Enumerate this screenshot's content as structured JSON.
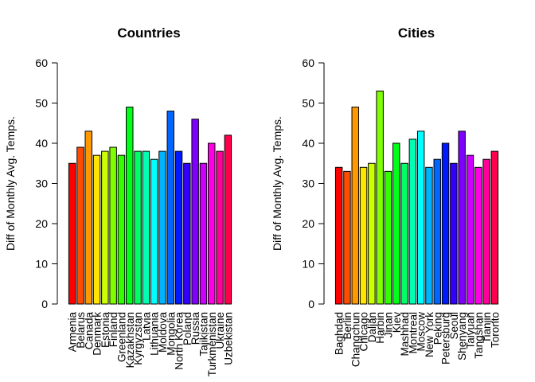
{
  "chart_data": [
    {
      "type": "bar",
      "title": "Countries",
      "ylabel": "Diff of Monthly Avg. Temps.",
      "xlabel": "",
      "ylim": [
        0,
        60
      ],
      "yticks": [
        0,
        10,
        20,
        30,
        40,
        50,
        60
      ],
      "grid": false,
      "categories": [
        "Armenia",
        "Belarus",
        "Canada",
        "Denmark",
        "Estonia",
        "Finland",
        "Greenland",
        "Kazakhstan",
        "Kyrgyzstan",
        "Latvia",
        "Lithuania",
        "Moldova",
        "Mongolia",
        "North Korea",
        "Poland",
        "Russia",
        "Tajikistan",
        "Turkmenistan",
        "Ukraine",
        "Uzbekistan"
      ],
      "values": [
        35,
        39,
        43,
        37,
        38,
        39,
        37,
        49,
        38,
        38,
        36,
        38,
        48,
        38,
        35,
        46,
        35,
        40,
        38,
        42
      ],
      "colors": [
        "#FF0000",
        "#FF4D00",
        "#FF9900",
        "#FFE500",
        "#CCFF00",
        "#80FF00",
        "#33FF00",
        "#00FF19",
        "#00FF66",
        "#00FFB2",
        "#00FFFF",
        "#00B3FF",
        "#0066FF",
        "#001AFF",
        "#3300FF",
        "#7F00FF",
        "#CC00FF",
        "#FF00E6",
        "#FF0099",
        "#FF004D"
      ]
    },
    {
      "type": "bar",
      "title": "Cities",
      "ylabel": "Diff of Monthly Avg. Temps.",
      "xlabel": "",
      "ylim": [
        0,
        60
      ],
      "yticks": [
        0,
        10,
        20,
        30,
        40,
        50,
        60
      ],
      "grid": false,
      "categories": [
        "Baghdad",
        "Berlin",
        "Changchun",
        "Chicago",
        "Dalian",
        "Harbin",
        "Jinan",
        "Kiev",
        "Mashhad",
        "Montreal",
        "Moscow",
        "New York",
        "Peking",
        "Petersburg",
        "Seoul",
        "Shenyang",
        "Taiyuan",
        "Tangshan",
        "Tianjin",
        "Toronto"
      ],
      "values": [
        34,
        33,
        49,
        34,
        35,
        53,
        33,
        40,
        35,
        41,
        43,
        34,
        36,
        40,
        35,
        43,
        37,
        34,
        36,
        38
      ],
      "colors": [
        "#FF0000",
        "#FF4D00",
        "#FF9900",
        "#FFE500",
        "#CCFF00",
        "#80FF00",
        "#33FF00",
        "#00FF19",
        "#00FF66",
        "#00FFB2",
        "#00FFFF",
        "#00B3FF",
        "#0066FF",
        "#001AFF",
        "#3300FF",
        "#7F00FF",
        "#CC00FF",
        "#FF00E6",
        "#FF0099",
        "#FF004D"
      ]
    }
  ]
}
